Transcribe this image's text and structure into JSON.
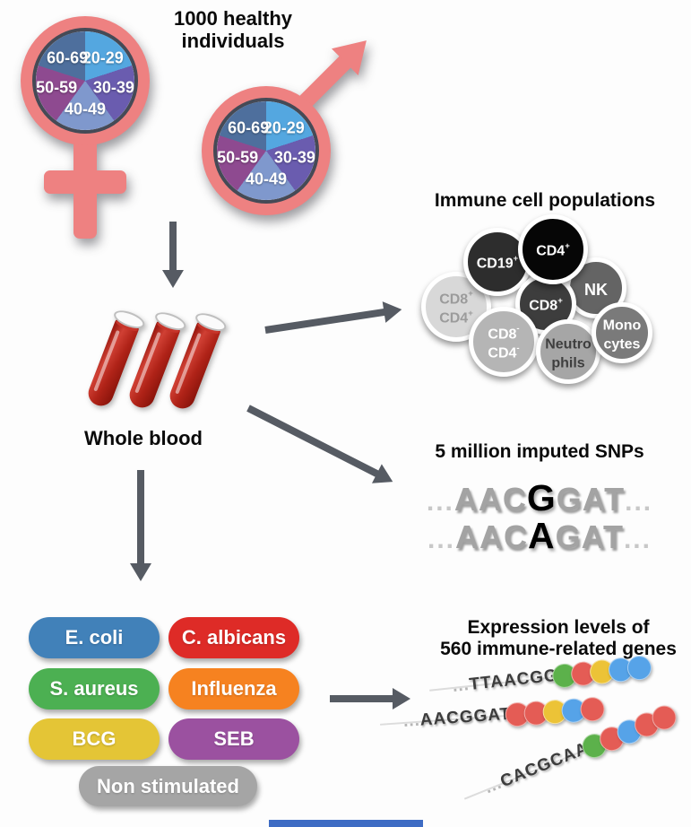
{
  "figure": {
    "title": {
      "line1": "1000 healthy",
      "line2": "individuals"
    },
    "demographics": {
      "symbols": [
        "female",
        "male"
      ],
      "symbol_color": "#ee8181",
      "age_slices": [
        {
          "label": "20-29",
          "color": "#54a7e0"
        },
        {
          "label": "30-39",
          "color": "#6a5caf"
        },
        {
          "label": "40-49",
          "color": "#7f98cd"
        },
        {
          "label": "50-59",
          "color": "#8e4a90"
        },
        {
          "label": "60-69",
          "color": "#4e6f9d"
        }
      ]
    },
    "whole_blood_label": "Whole blood",
    "immune_cells": {
      "title": "Immune cell populations",
      "cells": [
        {
          "name": "CD8+ CD4+",
          "lines": [
            [
              "CD8",
              "+"
            ],
            [
              "CD4",
              "+"
            ]
          ],
          "bg": "#d8d8d8",
          "fg": "#9b9b9b"
        },
        {
          "name": "CD19+",
          "lines": [
            [
              "CD19",
              "+"
            ]
          ],
          "bg": "#2d2d2d",
          "fg": "#ffffff"
        },
        {
          "name": "NK",
          "lines": [
            [
              "NK",
              ""
            ]
          ],
          "bg": "#646464",
          "fg": "#ffffff"
        },
        {
          "name": "CD8+",
          "lines": [
            [
              "CD8",
              "+"
            ]
          ],
          "bg": "#3d3d3d",
          "fg": "#ffffff"
        },
        {
          "name": "CD4+",
          "lines": [
            [
              "CD4",
              "+"
            ]
          ],
          "bg": "#060606",
          "fg": "#ffffff"
        },
        {
          "name": "CD8- CD4-",
          "lines": [
            [
              "CD8",
              "-"
            ],
            [
              "CD4",
              "-"
            ]
          ],
          "bg": "#b5b5b5",
          "fg": "#ffffff"
        },
        {
          "name": "Neutrophils",
          "lines": [
            [
              "Neutro",
              ""
            ],
            [
              "phils",
              ""
            ]
          ],
          "bg": "#a6a6a6",
          "fg": "#3f3f3f"
        },
        {
          "name": "Monocytes",
          "lines": [
            [
              "Mono",
              ""
            ],
            [
              "cytes",
              ""
            ]
          ],
          "bg": "#7a7a7a",
          "fg": "#ffffff"
        }
      ]
    },
    "snps": {
      "title": "5 million imputed SNPs",
      "sequences": [
        {
          "prefix": "...",
          "before": "AAC",
          "variant": "G",
          "after": "GAT",
          "suffix": "..."
        },
        {
          "prefix": "...",
          "before": "AAC",
          "variant": "A",
          "after": "GAT",
          "suffix": "..."
        }
      ]
    },
    "stimuli": [
      {
        "label": "E. coli",
        "color": "#4181b9"
      },
      {
        "label": "C. albicans",
        "color": "#de2b27"
      },
      {
        "label": "S. aureus",
        "color": "#4cb052"
      },
      {
        "label": "Influenza",
        "color": "#f68220"
      },
      {
        "label": "BCG",
        "color": "#e4c536"
      },
      {
        "label": "SEB",
        "color": "#9b51a0"
      },
      {
        "label": "Non stimulated",
        "color": "#a5a5a5"
      }
    ],
    "expression": {
      "title_line1": "Expression levels of",
      "title_line2": "560 immune-related genes",
      "bead_palette": {
        "green": "#5cb14b",
        "red": "#e45c55",
        "yellow": "#ecc337",
        "blue": "#56a3e8"
      },
      "reads": [
        {
          "prefix": "...",
          "sequence": "TTAACGG",
          "beads": [
            "green",
            "red",
            "yellow",
            "blue",
            "blue"
          ]
        },
        {
          "prefix": "...",
          "sequence": "AACGGAT",
          "beads": [
            "red",
            "red",
            "yellow",
            "blue",
            "red"
          ]
        },
        {
          "prefix": "...",
          "sequence": "CACGCAA",
          "beads": [
            "green",
            "red",
            "blue",
            "red",
            "red"
          ]
        }
      ]
    },
    "colors": {
      "arrow": "#565b63",
      "gender_symbol": "#ee8181",
      "pie_border": "#454a56",
      "blood": "#b02318",
      "bottom_bar": "#3e6cc4"
    }
  }
}
